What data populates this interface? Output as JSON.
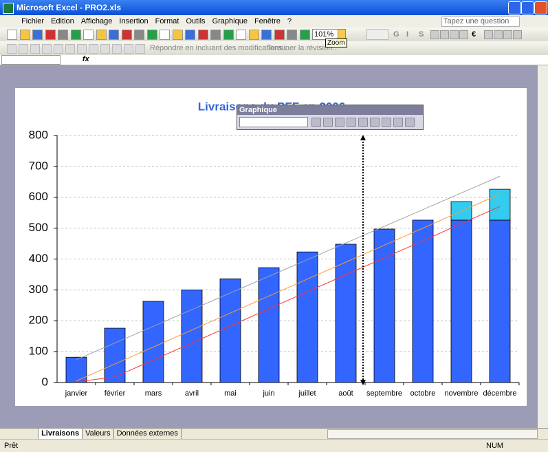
{
  "window": {
    "title": "Microsoft Excel - PRO2.xls"
  },
  "menu": [
    "Fichier",
    "Edition",
    "Affichage",
    "Insertion",
    "Format",
    "Outils",
    "Graphique",
    "Fenêtre",
    "?"
  ],
  "help_box": "Tapez une question",
  "toolbar": {
    "zoom": "101%",
    "tooltip": "Zoom",
    "format_buttons": [
      "G",
      "I",
      "S",
      "€"
    ],
    "review": [
      "Répondre en incluant des modifications...",
      "Terminer la révision..."
    ]
  },
  "formula_bar": {
    "fx": "fx"
  },
  "floating_toolbar": {
    "title": "Graphique"
  },
  "chart_data": {
    "type": "bar",
    "title": "Livraisons du PFF en 2006",
    "categories": [
      "janvier",
      "février",
      "mars",
      "avril",
      "mai",
      "juin",
      "juillet",
      "août",
      "septembre",
      "octobre",
      "novembre",
      "décembre"
    ],
    "series": [
      {
        "color": "#3366ff",
        "values": [
          82,
          176,
          263,
          300,
          336,
          372,
          423,
          448,
          497,
          526,
          526,
          526
        ]
      },
      {
        "color": "#33ccee",
        "values": [
          null,
          null,
          null,
          null,
          null,
          null,
          null,
          null,
          null,
          null,
          60,
          100
        ]
      },
      {
        "kind": "line",
        "color": "#a0a0a0",
        "values": [
          74,
          128,
          182,
          236,
          290,
          344,
          398,
          452,
          506,
          560,
          614,
          668
        ]
      },
      {
        "kind": "line",
        "color": "#ff9933",
        "values": [
          5,
          60,
          115,
          170,
          225,
          280,
          335,
          390,
          445,
          500,
          555,
          610
        ]
      },
      {
        "kind": "line",
        "color": "#ff3333",
        "values": [
          2,
          18,
          73,
          128,
          183,
          239,
          294,
          349,
          404,
          459,
          515,
          570
        ]
      }
    ],
    "ylim": [
      0,
      800
    ],
    "yticks": [
      0,
      100,
      200,
      300,
      400,
      500,
      600,
      700,
      800
    ],
    "grid": true
  },
  "sheet_tabs": [
    "Livraisons",
    "Valeurs",
    "Données externes"
  ],
  "status": {
    "left": "Prêt",
    "right": "NUM"
  }
}
